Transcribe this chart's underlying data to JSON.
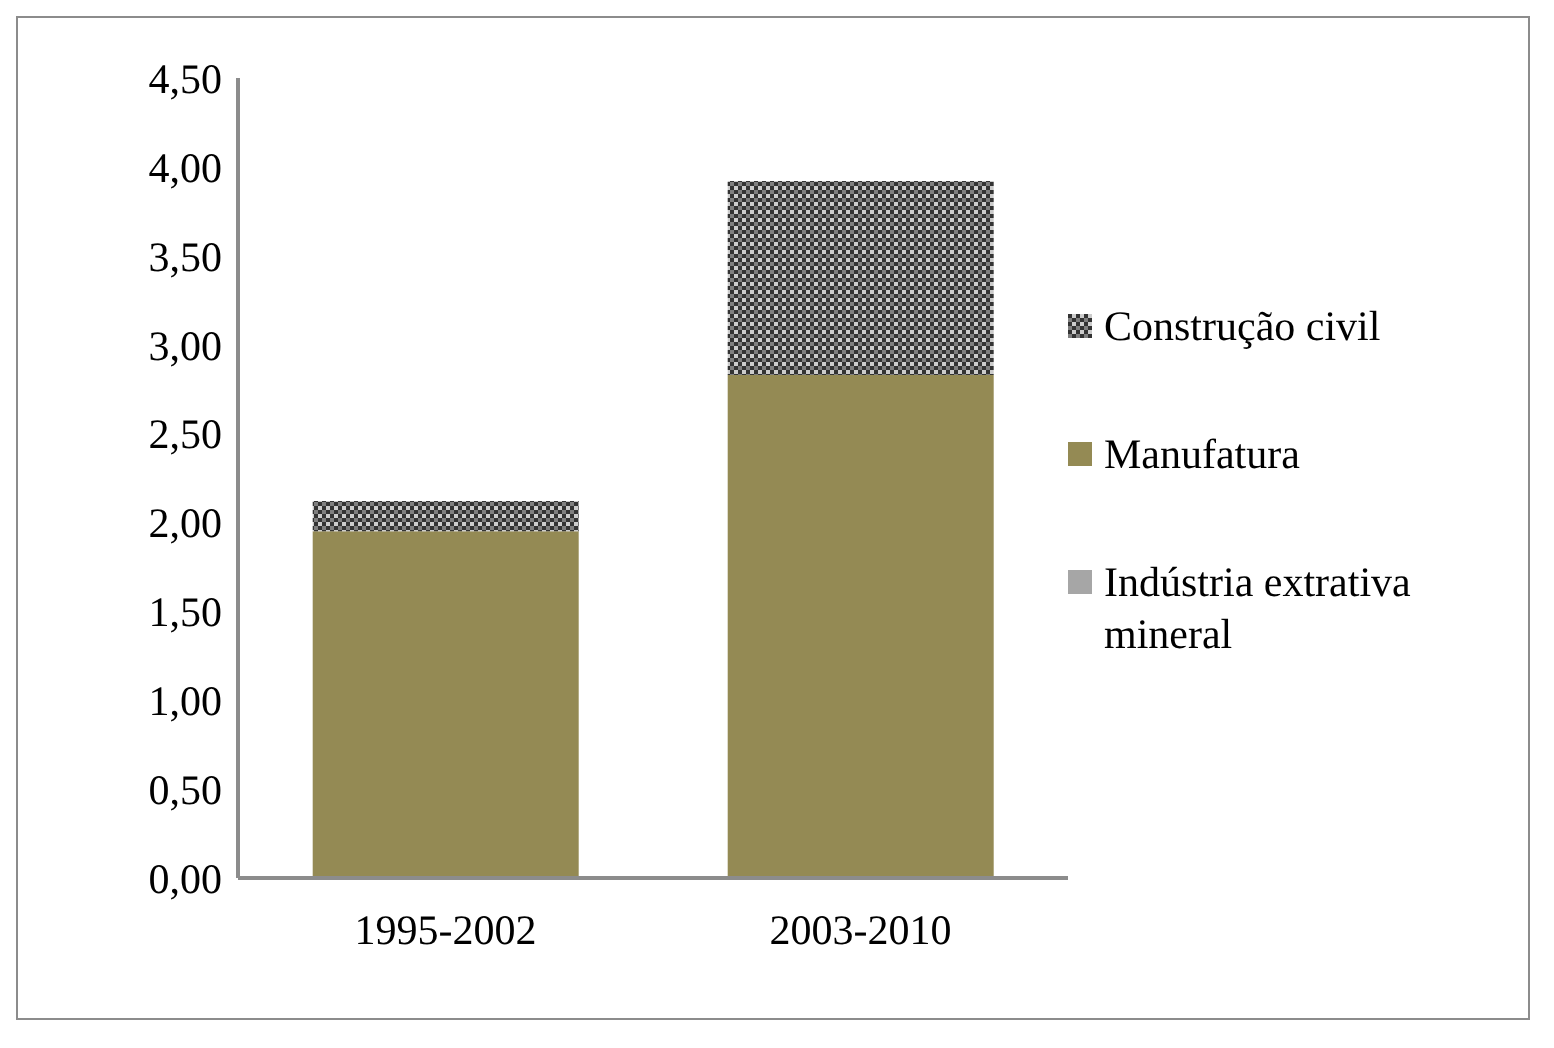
{
  "chart_data": {
    "type": "bar",
    "stacked": true,
    "categories": [
      "1995-2002",
      "2003-2010"
    ],
    "series": [
      {
        "name": "Indústria extrativa mineral",
        "color": "#a6a6a6",
        "values": [
          0,
          0
        ]
      },
      {
        "name": "Manufatura",
        "color": "#948a54",
        "values": [
          1.95,
          2.83
        ]
      },
      {
        "name": "Construção civil",
        "color": "#7f7f7f",
        "values": [
          0.17,
          1.09
        ]
      }
    ],
    "ylim": [
      0,
      4.5
    ],
    "yticks": [
      {
        "value": 0,
        "label": "0,00"
      },
      {
        "value": 0.5,
        "label": "0,50"
      },
      {
        "value": 1,
        "label": "1,00"
      },
      {
        "value": 1.5,
        "label": "1,50"
      },
      {
        "value": 2,
        "label": "2,00"
      },
      {
        "value": 2.5,
        "label": "2,50"
      },
      {
        "value": 3,
        "label": "3,00"
      },
      {
        "value": 3.5,
        "label": "3,50"
      },
      {
        "value": 4,
        "label": "4,00"
      },
      {
        "value": 4.5,
        "label": "4,50"
      }
    ],
    "grid": false,
    "legend": "right"
  }
}
